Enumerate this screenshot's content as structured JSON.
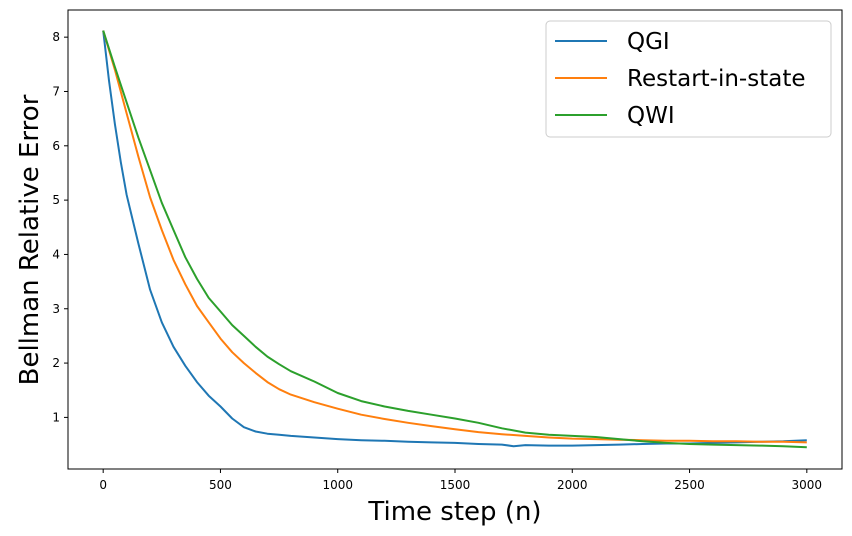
{
  "chart_data": {
    "type": "line",
    "title": "",
    "xlabel": "Time step (n)",
    "ylabel": "Bellman Relative Error",
    "xlim": [
      -150,
      3150
    ],
    "ylim": [
      0.05,
      8.5
    ],
    "xticks": [
      0,
      500,
      1000,
      1500,
      2000,
      2500,
      3000
    ],
    "yticks": [
      1,
      2,
      3,
      4,
      5,
      6,
      7,
      8
    ],
    "grid": false,
    "legend_position": "top-right",
    "series": [
      {
        "name": "QGI",
        "color": "#1f77b4",
        "x": [
          0,
          25,
          50,
          75,
          100,
          150,
          200,
          250,
          300,
          350,
          400,
          450,
          500,
          550,
          600,
          650,
          700,
          750,
          800,
          900,
          1000,
          1100,
          1200,
          1300,
          1400,
          1500,
          1600,
          1700,
          1750,
          1800,
          1900,
          2000,
          2100,
          2200,
          2300,
          2400,
          2500,
          2600,
          2700,
          2800,
          2900,
          3000
        ],
        "y": [
          8.12,
          7.2,
          6.4,
          5.7,
          5.1,
          4.2,
          3.35,
          2.75,
          2.3,
          1.95,
          1.65,
          1.4,
          1.2,
          0.98,
          0.82,
          0.74,
          0.7,
          0.68,
          0.66,
          0.63,
          0.6,
          0.58,
          0.57,
          0.55,
          0.54,
          0.53,
          0.51,
          0.5,
          0.47,
          0.49,
          0.48,
          0.48,
          0.49,
          0.5,
          0.51,
          0.52,
          0.52,
          0.53,
          0.54,
          0.55,
          0.56,
          0.58
        ]
      },
      {
        "name": "Restart-in-state",
        "color": "#ff7f0e",
        "x": [
          0,
          50,
          100,
          150,
          200,
          250,
          300,
          350,
          400,
          450,
          500,
          550,
          600,
          650,
          700,
          750,
          800,
          900,
          1000,
          1100,
          1200,
          1300,
          1400,
          1500,
          1600,
          1700,
          1800,
          1900,
          2000,
          2100,
          2200,
          2300,
          2400,
          2500,
          2600,
          2700,
          2800,
          2900,
          3000
        ],
        "y": [
          8.12,
          7.4,
          6.6,
          5.8,
          5.05,
          4.45,
          3.9,
          3.45,
          3.05,
          2.75,
          2.45,
          2.2,
          2.0,
          1.82,
          1.65,
          1.52,
          1.42,
          1.28,
          1.16,
          1.05,
          0.97,
          0.9,
          0.84,
          0.78,
          0.73,
          0.69,
          0.66,
          0.63,
          0.61,
          0.6,
          0.59,
          0.58,
          0.57,
          0.57,
          0.56,
          0.56,
          0.55,
          0.55,
          0.54
        ]
      },
      {
        "name": "QWI",
        "color": "#2ca02c",
        "x": [
          0,
          50,
          100,
          150,
          200,
          250,
          300,
          350,
          400,
          450,
          500,
          550,
          600,
          650,
          700,
          750,
          800,
          900,
          1000,
          1100,
          1200,
          1300,
          1400,
          1500,
          1600,
          1700,
          1800,
          1900,
          2000,
          2100,
          2200,
          2300,
          2400,
          2500,
          2600,
          2700,
          2800,
          2900,
          3000
        ],
        "y": [
          8.12,
          7.45,
          6.8,
          6.15,
          5.55,
          4.95,
          4.45,
          3.95,
          3.55,
          3.2,
          2.95,
          2.7,
          2.5,
          2.3,
          2.12,
          1.98,
          1.85,
          1.66,
          1.45,
          1.3,
          1.2,
          1.12,
          1.05,
          0.98,
          0.9,
          0.8,
          0.72,
          0.68,
          0.66,
          0.64,
          0.6,
          0.56,
          0.53,
          0.51,
          0.5,
          0.49,
          0.48,
          0.47,
          0.45
        ]
      }
    ]
  }
}
